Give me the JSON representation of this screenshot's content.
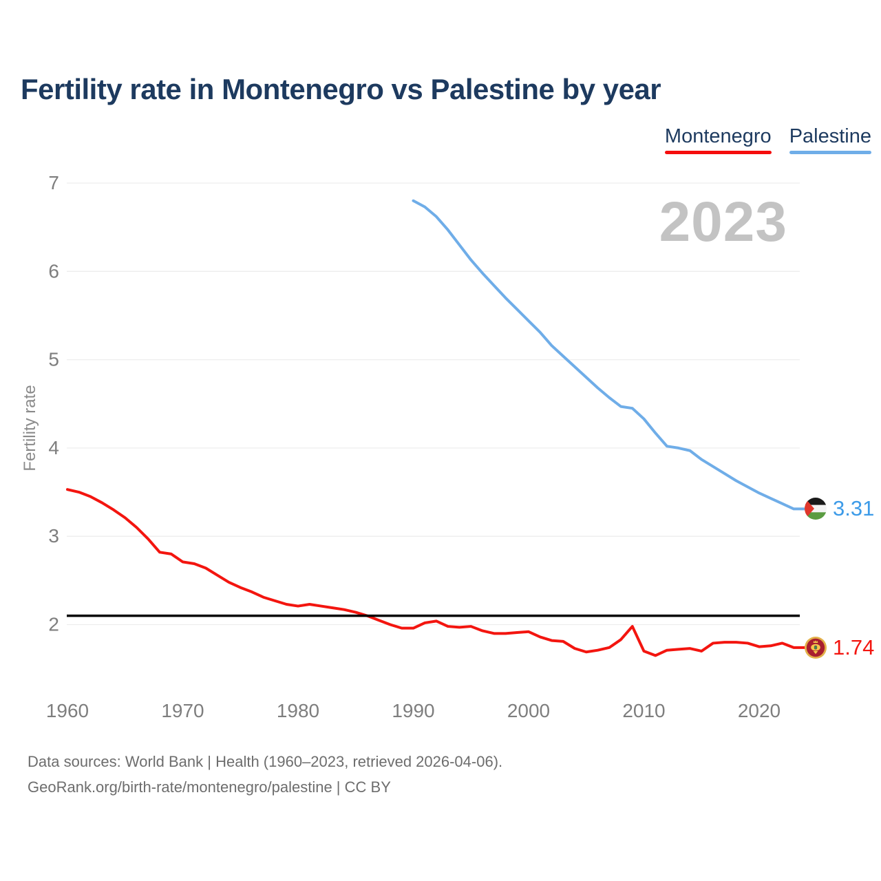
{
  "header": {
    "title": "Fertility rate in Montenegro vs Palestine by year"
  },
  "legend": [
    {
      "label": "Montenegro",
      "color": "#f50d0d"
    },
    {
      "label": "Palestine",
      "color": "#6fade8"
    }
  ],
  "watermark": "2023",
  "footer": {
    "line1": "Data sources: World Bank | Health (1960–2023, retrieved 2026-04-06).",
    "line2": "GeoRank.org/birth-rate/montenegro/palestine | CC BY"
  },
  "chart_data": {
    "type": "line",
    "title": "Fertility rate in Montenegro vs Palestine by year",
    "xlabel": "",
    "ylabel": "Fertility rate",
    "x_ticks": [
      1960,
      1970,
      1980,
      1990,
      2000,
      2010,
      2020
    ],
    "y_ticks": [
      2,
      3,
      4,
      5,
      6,
      7
    ],
    "xlim": [
      1958.5,
      2023.5
    ],
    "ylim": [
      1.4,
      7.2
    ],
    "grid": "horizontal-only",
    "legend_position": "top-right",
    "reference_line": {
      "value": 2.1,
      "color": "#000000"
    },
    "series": [
      {
        "name": "Montenegro",
        "color": "#f3150f",
        "label_color": "#f3150f",
        "end_label": "1.74",
        "start_year": 1960,
        "values": [
          3.53,
          3.5,
          3.45,
          3.38,
          3.3,
          3.21,
          3.1,
          2.97,
          2.82,
          2.8,
          2.71,
          2.69,
          2.64,
          2.56,
          2.48,
          2.42,
          2.37,
          2.31,
          2.27,
          2.23,
          2.21,
          2.23,
          2.21,
          2.19,
          2.17,
          2.14,
          2.1,
          2.05,
          2.0,
          1.96,
          1.96,
          2.02,
          2.04,
          1.98,
          1.97,
          1.98,
          1.93,
          1.9,
          1.9,
          1.91,
          1.92,
          1.86,
          1.82,
          1.81,
          1.73,
          1.69,
          1.71,
          1.74,
          1.83,
          1.98,
          1.7,
          1.65,
          1.71,
          1.72,
          1.73,
          1.7,
          1.79,
          1.8,
          1.8,
          1.79,
          1.75,
          1.76,
          1.79,
          1.74
        ]
      },
      {
        "name": "Palestine",
        "color": "#6fade8",
        "label_color": "#3d9be8",
        "end_label": "3.31",
        "start_year": 1990,
        "values": [
          6.8,
          6.73,
          6.62,
          6.47,
          6.3,
          6.13,
          5.98,
          5.84,
          5.7,
          5.57,
          5.44,
          5.31,
          5.16,
          5.04,
          4.92,
          4.8,
          4.68,
          4.57,
          4.47,
          4.45,
          4.33,
          4.17,
          4.02,
          4.0,
          3.97,
          3.87,
          3.79,
          3.71,
          3.63,
          3.56,
          3.49,
          3.43,
          3.37,
          3.31
        ]
      }
    ]
  }
}
